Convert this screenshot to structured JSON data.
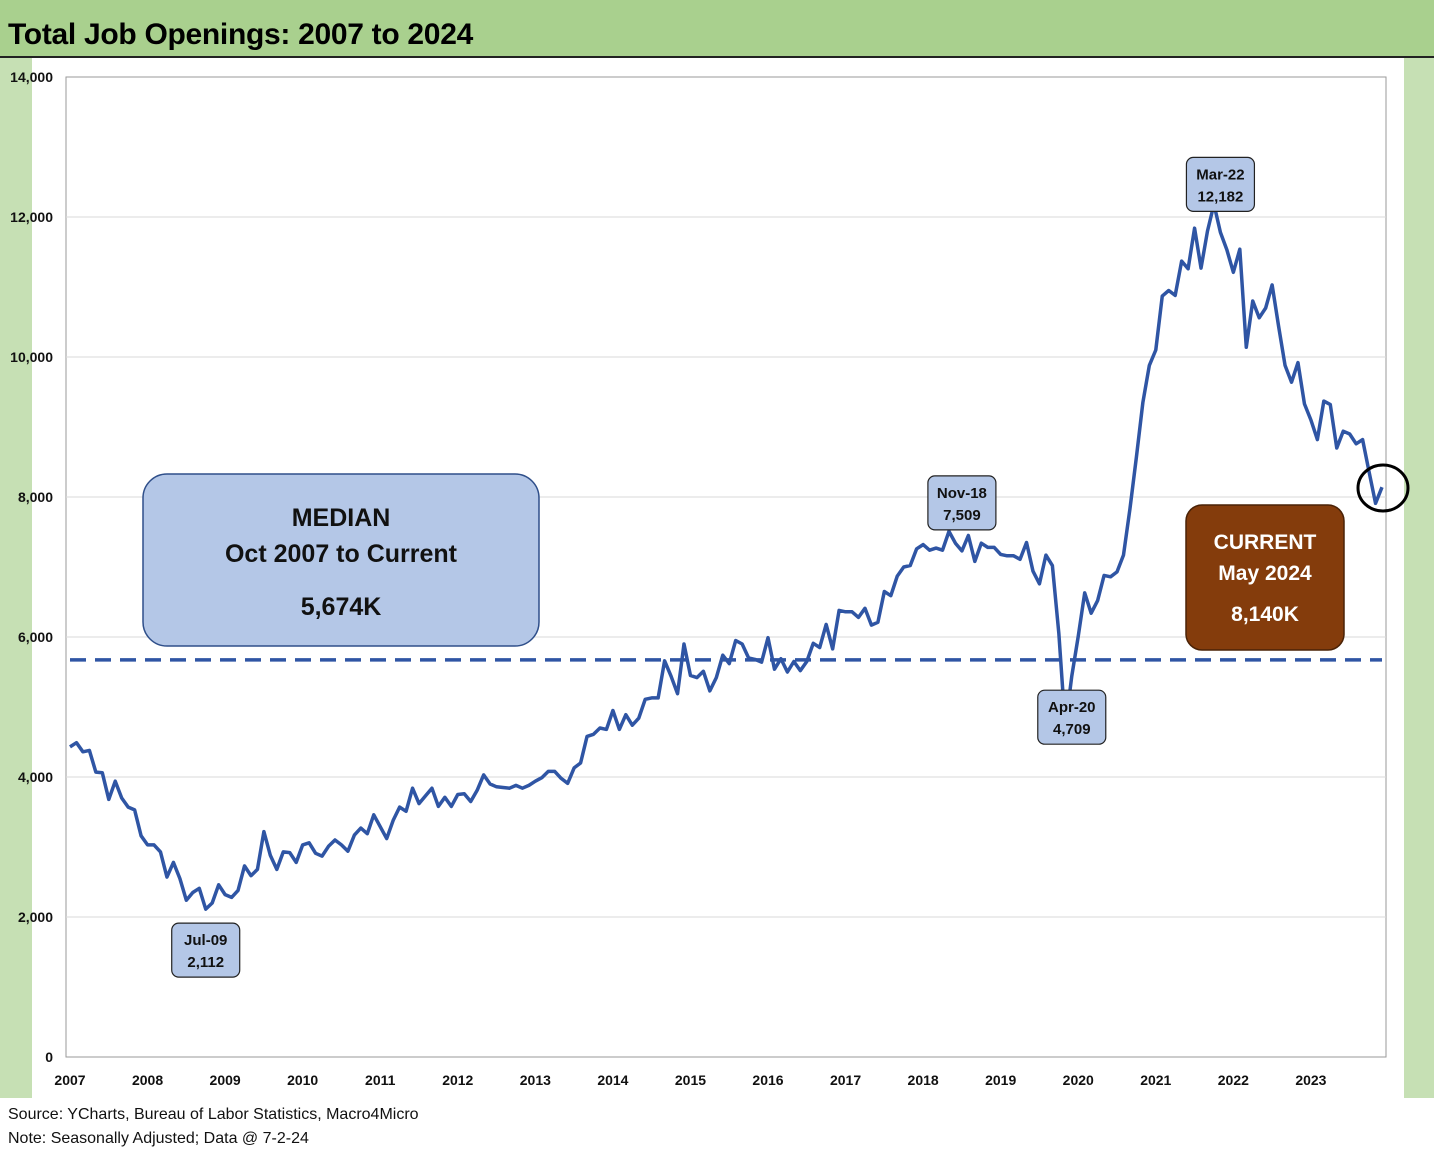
{
  "header": {
    "title": "Total Job Openings: 2007 to 2024"
  },
  "footer": {
    "source": "Source: YCharts, Bureau of Labor Statistics, Macro4Micro",
    "note": "Note: Seasonally Adjusted; Data @ 7-2-24"
  },
  "colors": {
    "line": "#2f55a4",
    "frame_bg": "#c6e0b4",
    "title_bg": "#a9d08e",
    "median_box": "#b4c7e7",
    "current_box": "#843c0c"
  },
  "chart_data": {
    "type": "line",
    "title": "Total Job Openings: 2007 to 2024",
    "xlabel": "",
    "ylabel": "",
    "ylim": [
      0,
      14000
    ],
    "yticks": [
      0,
      2000,
      4000,
      6000,
      8000,
      10000,
      12000,
      14000
    ],
    "ytick_labels": [
      "0",
      "2,000",
      "4,000",
      "6,000",
      "8,000",
      "10,000",
      "12,000",
      "14,000"
    ],
    "xtick_labels": [
      "2007",
      "2008",
      "2009",
      "2010",
      "2011",
      "2012",
      "2013",
      "2014",
      "2015",
      "2016",
      "2017",
      "2018",
      "2019",
      "2020",
      "2021",
      "2022",
      "2023"
    ],
    "grid": true,
    "series": [
      {
        "name": "",
        "values": [
          4430,
          4490,
          4360,
          4380,
          4070,
          4060,
          3680,
          3940,
          3700,
          3570,
          3530,
          3160,
          3030,
          3030,
          2930,
          2570,
          2780,
          2550,
          2240,
          2350,
          2410,
          2112,
          2200,
          2460,
          2320,
          2280,
          2380,
          2730,
          2590,
          2680,
          3220,
          2880,
          2680,
          2930,
          2920,
          2780,
          3030,
          3060,
          2910,
          2870,
          3010,
          3100,
          3030,
          2940,
          3170,
          3270,
          3190,
          3460,
          3290,
          3120,
          3380,
          3570,
          3510,
          3840,
          3620,
          3730,
          3840,
          3580,
          3710,
          3580,
          3750,
          3760,
          3650,
          3810,
          4030,
          3900,
          3860,
          3850,
          3840,
          3880,
          3840,
          3880,
          3940,
          3990,
          4080,
          4080,
          3980,
          3910,
          4130,
          4200,
          4580,
          4610,
          4700,
          4680,
          4950,
          4680,
          4890,
          4740,
          4840,
          5110,
          5130,
          5130,
          5660,
          5440,
          5190,
          5900,
          5450,
          5420,
          5510,
          5230,
          5420,
          5740,
          5620,
          5950,
          5900,
          5700,
          5680,
          5640,
          5990,
          5540,
          5690,
          5500,
          5650,
          5520,
          5650,
          5910,
          5850,
          6180,
          5830,
          6380,
          6360,
          6360,
          6280,
          6410,
          6170,
          6210,
          6650,
          6590,
          6870,
          7000,
          7020,
          7260,
          7320,
          7240,
          7270,
          7240,
          7509,
          7340,
          7230,
          7450,
          7080,
          7340,
          7280,
          7280,
          7180,
          7160,
          7160,
          7110,
          7350,
          6940,
          6760,
          7170,
          7020,
          6050,
          4709,
          5440,
          6010,
          6630,
          6340,
          6520,
          6880,
          6860,
          6930,
          7170,
          7830,
          8570,
          9350,
          9880,
          10100,
          10870,
          10950,
          10880,
          11370,
          11260,
          11840,
          11270,
          11800,
          12182,
          11780,
          11530,
          11210,
          11540,
          10140,
          10800,
          10560,
          10700,
          11030,
          10440,
          9880,
          9640,
          9920,
          9330,
          9100,
          8820,
          9370,
          9320,
          8700,
          8940,
          8900,
          8760,
          8820,
          8360,
          7910,
          8140
        ]
      }
    ],
    "median": {
      "value": 5674,
      "label_lines": [
        "MEDIAN",
        "Oct 2007 to Current",
        "5,674K"
      ]
    },
    "current": {
      "label_lines": [
        "CURRENT",
        "May 2024",
        "8,140K"
      ]
    },
    "annotations": [
      {
        "index": 21,
        "label": "Jul-09",
        "value_label": "2,112",
        "position": "below"
      },
      {
        "index": 138,
        "label": "Nov-18",
        "value_label": "7,509",
        "position": "above"
      },
      {
        "index": 155,
        "label": "Apr-20",
        "value_label": "4,709",
        "position": "below"
      },
      {
        "index": 178,
        "label": "Mar-22",
        "value_label": "12,182",
        "position": "above"
      }
    ]
  }
}
